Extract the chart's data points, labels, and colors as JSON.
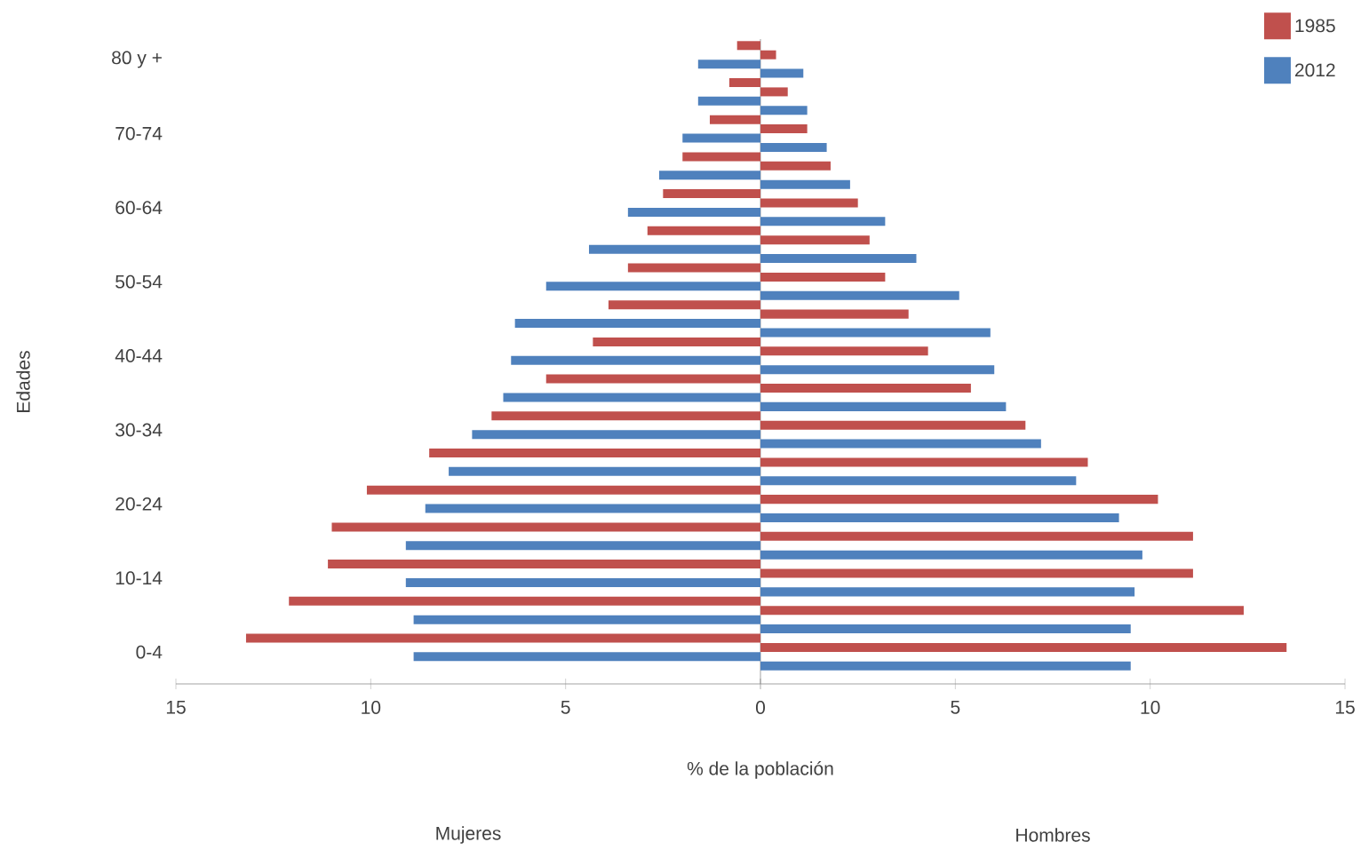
{
  "chart_data": {
    "type": "bar",
    "orientation": "horizontal",
    "ylabel": "Edades",
    "xlabel": "% de la población",
    "categories": [
      "80 y +",
      null,
      "70-74",
      null,
      "60-64",
      null,
      "50-54",
      null,
      "40-44",
      null,
      "30-34",
      null,
      "20-24",
      null,
      "10-14",
      null,
      "0-4"
    ],
    "series": [
      {
        "name": "1985",
        "color": "#c0504d",
        "values": [
          -0.6,
          -0.8,
          -1.3,
          -2.0,
          -2.5,
          -2.9,
          -3.4,
          -3.9,
          -4.3,
          -5.5,
          -6.9,
          -8.5,
          -10.1,
          -11.0,
          -11.1,
          -12.1,
          -13.2
        ]
      },
      {
        "name": "2012",
        "color": "#4f81bd",
        "values": [
          -1.6,
          -1.6,
          -2.0,
          -2.6,
          -3.4,
          -4.4,
          -5.5,
          -6.3,
          -6.4,
          -6.6,
          -7.4,
          -8.0,
          -8.6,
          -9.1,
          -9.1,
          -8.9,
          -8.9
        ]
      },
      {
        "color": "#c0504d",
        "values": [
          0.4,
          0.7,
          1.2,
          1.8,
          2.5,
          2.8,
          3.2,
          3.8,
          4.3,
          5.4,
          6.8,
          8.4,
          10.2,
          11.1,
          11.1,
          12.4,
          13.5
        ]
      },
      {
        "color": "#4f81bd",
        "values": [
          1.1,
          1.2,
          1.7,
          2.3,
          3.2,
          4.0,
          5.1,
          5.9,
          6.0,
          6.3,
          7.2,
          8.1,
          9.2,
          9.8,
          9.6,
          9.5,
          9.5
        ]
      }
    ],
    "xlim": [
      -15,
      15
    ],
    "xticks": [
      {
        "value": -15,
        "label": "15"
      },
      {
        "value": -10,
        "label": "10"
      },
      {
        "value": -5,
        "label": "5"
      },
      0,
      5,
      10,
      15
    ],
    "legend": "top right",
    "annotations": [
      "Mujeres",
      "Hombres"
    ]
  }
}
